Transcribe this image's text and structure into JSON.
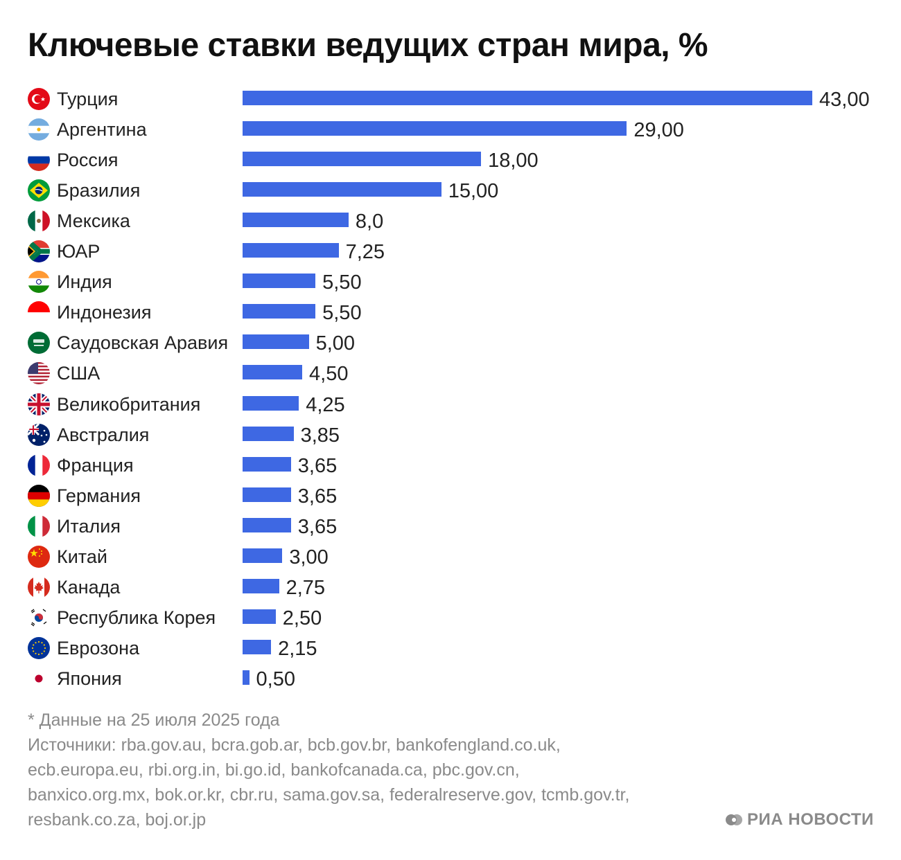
{
  "title": "Ключевые ставки ведущих стран мира, %",
  "colors": {
    "bar": "#3e68e3",
    "text": "#222222",
    "muted": "#8a8a8a"
  },
  "chart_data": {
    "type": "bar",
    "orientation": "horizontal",
    "title": "Ключевые ставки ведущих стран мира, %",
    "categories": [
      "Турция",
      "Аргентина",
      "Россия",
      "Бразилия",
      "Мексика",
      "ЮАР",
      "Индия",
      "Индонезия",
      "Саудовская Аравия",
      "США",
      "Великобритания",
      "Австралия",
      "Франция",
      "Германия",
      "Италия",
      "Китай",
      "Канада",
      "Республика Корея",
      "Еврозона",
      "Япония"
    ],
    "values": [
      43.0,
      29.0,
      18.0,
      15.0,
      8.0,
      7.25,
      5.5,
      5.5,
      5.0,
      4.5,
      4.25,
      3.85,
      3.65,
      3.65,
      3.65,
      3.0,
      2.75,
      2.5,
      2.15,
      0.5
    ],
    "value_labels": [
      "43,00",
      "29,00",
      "18,00",
      "15,00",
      "8,0",
      "7,25",
      "5,50",
      "5,50",
      "5,00",
      "4,50",
      "4,25",
      "3,85",
      "3,65",
      "3,65",
      "3,65",
      "3,00",
      "2,75",
      "2,50",
      "2,15",
      "0,50"
    ],
    "flags": [
      "turkey-flag-icon",
      "argentina-flag-icon",
      "russia-flag-icon",
      "brazil-flag-icon",
      "mexico-flag-icon",
      "south-africa-flag-icon",
      "india-flag-icon",
      "indonesia-flag-icon",
      "saudi-arabia-flag-icon",
      "usa-flag-icon",
      "uk-flag-icon",
      "australia-flag-icon",
      "france-flag-icon",
      "germany-flag-icon",
      "italy-flag-icon",
      "china-flag-icon",
      "canada-flag-icon",
      "south-korea-flag-icon",
      "eurozone-flag-icon",
      "japan-flag-icon"
    ],
    "xlim": [
      0,
      43
    ],
    "grid": false,
    "legend": "none",
    "xlabel": "",
    "ylabel": ""
  },
  "footnote": "* Данные на 25 июля 2025 года",
  "sources": [
    "Источники: rba.gov.au, bcra.gob.ar, bcb.gov.br, bankofengland.co.uk,",
    "ecb.europa.eu, rbi.org.in, bi.go.id, bankofcanada.ca, pbc.gov.cn,",
    "banxico.org.mx, bok.or.kr, cbr.ru, sama.gov.sa, federalreserve.gov, tcmb.gov.tr,",
    "resbank.co.za, boj.or.jp"
  ],
  "logo": {
    "text": "РИА НОВОСТИ"
  }
}
